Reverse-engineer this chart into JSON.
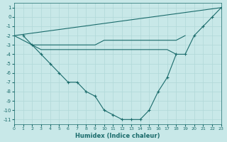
{
  "xlabel": "Humidex (Indice chaleur)",
  "background_color": "#c8e8e8",
  "grid_color": "#b0d8d8",
  "line_color": "#1a6b6b",
  "xlim": [
    0,
    23
  ],
  "ylim": [
    -11.5,
    1.5
  ],
  "yticks": [
    1,
    0,
    -1,
    -2,
    -3,
    -4,
    -5,
    -6,
    -7,
    -8,
    -9,
    -10,
    -11
  ],
  "xticks": [
    0,
    1,
    2,
    3,
    4,
    5,
    6,
    7,
    8,
    9,
    10,
    11,
    12,
    13,
    14,
    15,
    16,
    17,
    18,
    19,
    20,
    21,
    22,
    23
  ],
  "series": [
    {
      "x": [
        0,
        23
      ],
      "y": [
        -2,
        1
      ],
      "with_markers": false
    },
    {
      "x": [
        0,
        1,
        2,
        3,
        4,
        5,
        6,
        7,
        8,
        9,
        10,
        11,
        12,
        13,
        14,
        15,
        16,
        17,
        18,
        19
      ],
      "y": [
        -2,
        -2.5,
        -3,
        -3,
        -3,
        -3,
        -3,
        -3,
        -3,
        -3,
        -2.5,
        -2.5,
        -2.5,
        -2.5,
        -2.5,
        -2.5,
        -2.5,
        -2.5,
        -2.5,
        -2
      ],
      "with_markers": false
    },
    {
      "x": [
        2,
        3,
        4,
        5,
        6,
        7,
        8,
        9,
        10,
        11,
        12,
        13,
        14,
        15,
        16,
        17,
        18
      ],
      "y": [
        -3,
        -3.5,
        -3.5,
        -3.5,
        -3.5,
        -3.5,
        -3.5,
        -3.5,
        -3.5,
        -3.5,
        -3.5,
        -3.5,
        -3.5,
        -3.5,
        -3.5,
        -3.5,
        -4
      ],
      "with_markers": false
    },
    {
      "x": [
        1,
        2,
        3,
        4,
        5,
        6,
        7,
        8,
        9,
        10,
        11,
        12,
        13,
        14,
        15,
        16,
        17,
        18,
        19,
        20,
        21,
        22,
        23
      ],
      "y": [
        -2,
        -3,
        -4,
        -5,
        -6,
        -7,
        -7,
        -8,
        -8.5,
        -10,
        -10.5,
        -11,
        -11,
        -11,
        -10,
        -8,
        -6.5,
        -4,
        -4,
        -2,
        -1,
        0,
        1
      ],
      "with_markers": true
    }
  ]
}
